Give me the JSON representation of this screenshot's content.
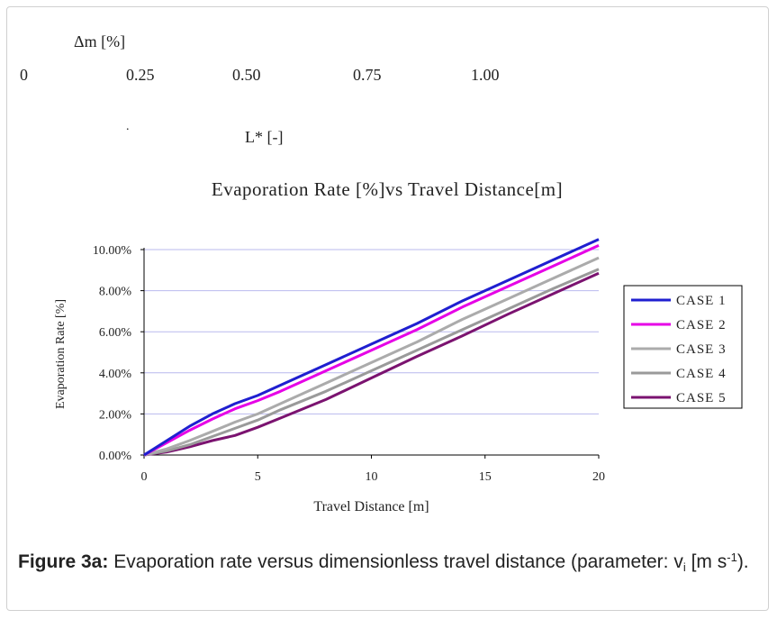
{
  "top_labels": {
    "delta_m": "Δm [%]",
    "ticks": [
      "0",
      "0.25",
      "0.50",
      "0.75",
      "1.00"
    ],
    "dot": ".",
    "l_star": "L* [-]"
  },
  "chart_data": {
    "type": "line",
    "title": "Evaporation Rate [%]vs Travel Distance[m]",
    "xlabel": "Travel Distance [m]",
    "ylabel": "Evaporation Rate [%]",
    "xlim": [
      0,
      20
    ],
    "ylim": [
      0,
      10
    ],
    "x_ticks": [
      0,
      5,
      10,
      15,
      20
    ],
    "x_tick_labels": [
      "0",
      "5",
      "10",
      "15",
      "20"
    ],
    "y_ticks": [
      0,
      2,
      4,
      6,
      8,
      10
    ],
    "y_tick_labels": [
      "0.00%",
      "2.00%",
      "4.00%",
      "6.00%",
      "8.00%",
      "10.00%"
    ],
    "grid": "horizontal",
    "legend_position": "right",
    "x": [
      0,
      1,
      2,
      3,
      4,
      5,
      6,
      8,
      10,
      12,
      14,
      16,
      18,
      20
    ],
    "series": [
      {
        "name": "CASE 1",
        "color": "#1f1fd0",
        "values": [
          0,
          0.7,
          1.4,
          2.0,
          2.5,
          2.9,
          3.4,
          4.4,
          5.4,
          6.4,
          7.5,
          8.5,
          9.5,
          10.5
        ]
      },
      {
        "name": "CASE 2",
        "color": "#e600e6",
        "values": [
          0,
          0.6,
          1.2,
          1.75,
          2.25,
          2.65,
          3.1,
          4.1,
          5.1,
          6.1,
          7.2,
          8.2,
          9.2,
          10.2
        ]
      },
      {
        "name": "CASE 3",
        "color": "#ababab",
        "values": [
          0,
          0.3,
          0.7,
          1.15,
          1.6,
          2.0,
          2.5,
          3.5,
          4.5,
          5.5,
          6.6,
          7.6,
          8.6,
          9.6
        ]
      },
      {
        "name": "CASE 4",
        "color": "#9a9a9a",
        "values": [
          0,
          0.2,
          0.5,
          0.9,
          1.3,
          1.7,
          2.2,
          3.1,
          4.1,
          5.1,
          6.1,
          7.1,
          8.1,
          9.05
        ]
      },
      {
        "name": "CASE 5",
        "color": "#7b1370",
        "values": [
          0,
          0.15,
          0.4,
          0.7,
          0.95,
          1.35,
          1.8,
          2.7,
          3.75,
          4.8,
          5.8,
          6.85,
          7.85,
          8.85
        ]
      }
    ]
  },
  "caption": {
    "label": "Figure 3a:",
    "text": "Evaporation rate versus dimensionless travel distance (parameter:",
    "v": "v",
    "sub": "i",
    "unit_open": "[m s",
    "sup": "-1",
    "unit_close": ")."
  }
}
